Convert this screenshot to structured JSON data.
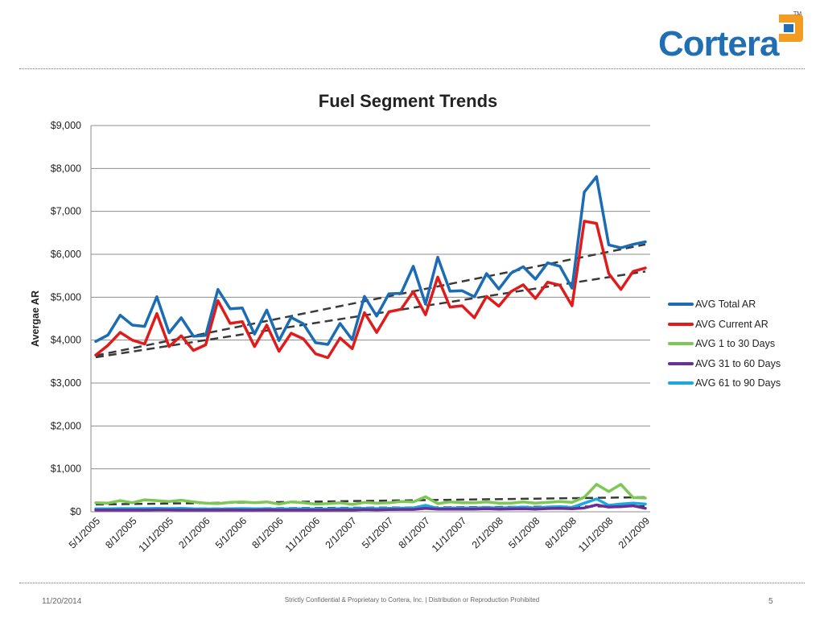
{
  "brand": {
    "name": "Cortera",
    "tm": "TM",
    "color": "#1f6fb2",
    "accent": "#f39c24"
  },
  "footer": {
    "date": "11/20/2014",
    "note": "Strictly Confidential & Proprietary to Cortera, Inc. |  Distribution or Reproduction Prohibited",
    "page": "5"
  },
  "chart_data": {
    "type": "line",
    "title": "Fuel Segment Trends",
    "ylabel": "Avergae AR",
    "xlabel": "",
    "ylim": [
      0,
      9000
    ],
    "yticks": [
      0,
      1000,
      2000,
      3000,
      4000,
      5000,
      6000,
      7000,
      8000,
      9000
    ],
    "ytick_labels": [
      "$0",
      "$1,000",
      "$2,000",
      "$3,000",
      "$4,000",
      "$5,000",
      "$6,000",
      "$7,000",
      "$8,000",
      "$9,000"
    ],
    "grid": true,
    "legend_position": "right",
    "x": [
      "5/1/2005",
      "6/1/2005",
      "7/1/2005",
      "8/1/2005",
      "9/1/2005",
      "10/1/2005",
      "11/1/2005",
      "12/1/2005",
      "1/1/2006",
      "2/1/2006",
      "3/1/2006",
      "4/1/2006",
      "5/1/2006",
      "6/1/2006",
      "7/1/2006",
      "8/1/2006",
      "9/1/2006",
      "10/1/2006",
      "11/1/2006",
      "12/1/2006",
      "1/1/2007",
      "2/1/2007",
      "3/1/2007",
      "4/1/2007",
      "5/1/2007",
      "6/1/2007",
      "7/1/2007",
      "8/1/2007",
      "9/1/2007",
      "10/1/2007",
      "11/1/2007",
      "12/1/2007",
      "1/1/2008",
      "2/1/2008",
      "3/1/2008",
      "4/1/2008",
      "5/1/2008",
      "6/1/2008",
      "7/1/2008",
      "8/1/2008",
      "9/1/2008",
      "10/1/2008",
      "11/1/2008",
      "12/1/2008",
      "1/1/2009",
      "2/1/2009"
    ],
    "x_tick_labels": [
      "5/1/2005",
      "8/1/2005",
      "11/1/2005",
      "2/1/2006",
      "5/1/2006",
      "8/1/2006",
      "11/1/2006",
      "2/1/2007",
      "5/1/2007",
      "8/1/2007",
      "11/1/2007",
      "2/1/2008",
      "5/1/2008",
      "8/1/2008",
      "11/1/2008",
      "2/1/2009"
    ],
    "series": [
      {
        "name": "AVG Total AR",
        "color": "#1a6db5",
        "values": [
          3970,
          4120,
          4580,
          4350,
          4320,
          5010,
          4170,
          4520,
          4090,
          4110,
          5180,
          4730,
          4750,
          4140,
          4700,
          3990,
          4530,
          4380,
          3940,
          3900,
          4390,
          4010,
          5020,
          4560,
          5080,
          5090,
          5720,
          4840,
          5930,
          5140,
          5150,
          5010,
          5550,
          5190,
          5560,
          5710,
          5420,
          5800,
          5720,
          5210,
          7450,
          7810,
          6220,
          6150,
          6230,
          6290
        ]
      },
      {
        "name": "AVG Current AR",
        "color": "#e01b1b",
        "values": [
          3650,
          3880,
          4180,
          4000,
          3910,
          4620,
          3850,
          4100,
          3760,
          3890,
          4920,
          4390,
          4430,
          3850,
          4350,
          3740,
          4160,
          4030,
          3680,
          3590,
          4050,
          3800,
          4640,
          4180,
          4660,
          4720,
          5130,
          4590,
          5470,
          4770,
          4800,
          4520,
          5020,
          4790,
          5130,
          5290,
          4970,
          5350,
          5280,
          4800,
          6770,
          6720,
          5550,
          5180,
          5600,
          5680
        ]
      },
      {
        "name": "AVG 1 to 30 Days",
        "color": "#7dc855",
        "values": [
          210,
          200,
          260,
          210,
          280,
          260,
          240,
          270,
          230,
          200,
          190,
          220,
          230,
          210,
          230,
          180,
          230,
          210,
          180,
          190,
          210,
          170,
          220,
          200,
          210,
          240,
          230,
          350,
          190,
          230,
          210,
          210,
          230,
          200,
          200,
          230,
          200,
          220,
          240,
          220,
          340,
          640,
          470,
          640,
          330,
          320
        ]
      },
      {
        "name": "AVG 31 to 60 Days",
        "color": "#6a2f95",
        "values": [
          40,
          40,
          40,
          40,
          40,
          45,
          45,
          40,
          40,
          40,
          40,
          45,
          40,
          40,
          45,
          40,
          40,
          40,
          40,
          40,
          45,
          40,
          50,
          45,
          50,
          55,
          55,
          80,
          60,
          60,
          60,
          60,
          70,
          60,
          65,
          70,
          60,
          75,
          80,
          70,
          90,
          160,
          110,
          120,
          140,
          80
        ]
      },
      {
        "name": "AVG 61 to 90 Days",
        "color": "#1ba8e0",
        "values": [
          70,
          70,
          75,
          75,
          75,
          80,
          75,
          80,
          70,
          65,
          65,
          70,
          75,
          70,
          70,
          65,
          70,
          70,
          65,
          65,
          75,
          70,
          80,
          75,
          80,
          85,
          90,
          150,
          80,
          90,
          90,
          90,
          100,
          90,
          95,
          110,
          90,
          110,
          120,
          100,
          200,
          300,
          150,
          180,
          200,
          180
        ]
      }
    ],
    "trendlines": [
      {
        "series": "AVG Total AR",
        "start": 3640,
        "end": 6230
      },
      {
        "series": "AVG Current AR",
        "start": 3600,
        "end": 5600
      },
      {
        "series": "AVG 1 to 30 Days",
        "start": 170,
        "end": 340
      },
      {
        "series": "AVG 31 to 60 Days",
        "start": 60,
        "end": 130
      }
    ]
  }
}
